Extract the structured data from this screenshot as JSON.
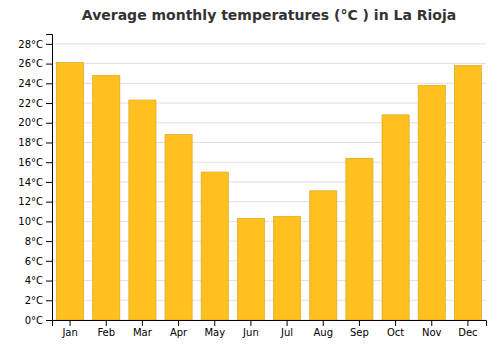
{
  "chart_data": {
    "type": "bar",
    "title": "Average monthly temperatures (°C ) in La Rioja",
    "categories": [
      "Jan",
      "Feb",
      "Mar",
      "Apr",
      "May",
      "Jun",
      "Jul",
      "Aug",
      "Sep",
      "Oct",
      "Nov",
      "Dec"
    ],
    "values": [
      26.1,
      24.8,
      22.3,
      18.8,
      15.0,
      10.3,
      10.5,
      13.1,
      16.4,
      20.8,
      23.8,
      25.8
    ],
    "color": "#FFC020",
    "ylim": [
      0,
      29
    ],
    "yticks": [
      {
        "value": 0,
        "label": "0°C"
      },
      {
        "value": 2,
        "label": "2°C"
      },
      {
        "value": 4,
        "label": "4°C"
      },
      {
        "value": 6,
        "label": "6°C"
      },
      {
        "value": 8,
        "label": "8°C"
      },
      {
        "value": 10,
        "label": "10°C"
      },
      {
        "value": 12,
        "label": "12°C"
      },
      {
        "value": 14,
        "label": "14°C"
      },
      {
        "value": 16,
        "label": "16°C"
      },
      {
        "value": 18,
        "label": "18°C"
      },
      {
        "value": 20,
        "label": "20°C"
      },
      {
        "value": 22,
        "label": "22°C"
      },
      {
        "value": 24,
        "label": "24°C"
      },
      {
        "value": 26,
        "label": "26°C"
      },
      {
        "value": 28,
        "label": "28°C"
      }
    ],
    "grid": true
  }
}
